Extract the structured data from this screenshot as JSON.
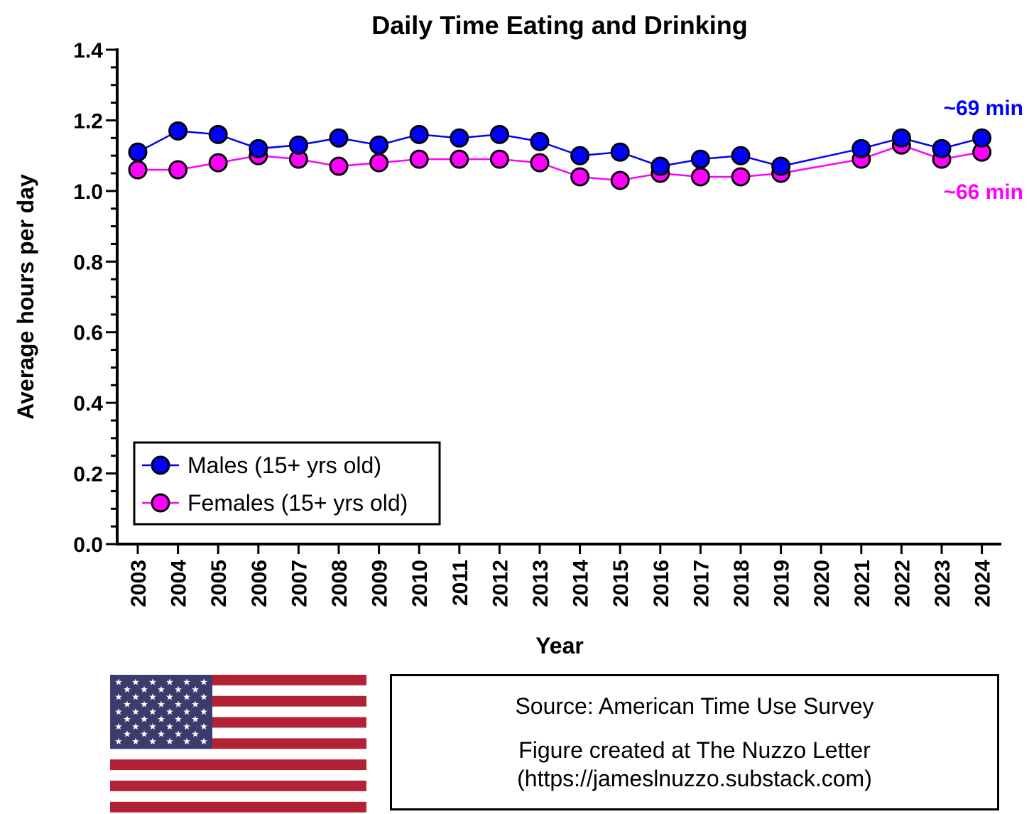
{
  "chart_data": {
    "type": "line",
    "title": "Daily Time Eating and Drinking",
    "xlabel": "Year",
    "ylabel": "Average hours per day",
    "ylim": [
      0,
      1.4
    ],
    "yticks": [
      "0.0",
      "0.2",
      "0.4",
      "0.6",
      "0.8",
      "1.0",
      "1.2",
      "1.4"
    ],
    "categories": [
      "2003",
      "2004",
      "2005",
      "2006",
      "2007",
      "2008",
      "2009",
      "2010",
      "2011",
      "2012",
      "2013",
      "2014",
      "2015",
      "2016",
      "2017",
      "2018",
      "2019",
      "2020",
      "2021",
      "2022",
      "2023",
      "2024"
    ],
    "series": [
      {
        "name": "Males (15+ yrs old)",
        "color": "#0000ff",
        "values": [
          1.11,
          1.17,
          1.16,
          1.12,
          1.13,
          1.15,
          1.13,
          1.16,
          1.15,
          1.16,
          1.14,
          1.1,
          1.11,
          1.07,
          1.09,
          1.1,
          1.07,
          null,
          1.12,
          1.15,
          1.12,
          1.15
        ],
        "end_label": "~69 min"
      },
      {
        "name": "Females (15+ yrs old)",
        "color": "#ff00ff",
        "values": [
          1.06,
          1.06,
          1.08,
          1.1,
          1.09,
          1.07,
          1.08,
          1.09,
          1.09,
          1.09,
          1.08,
          1.04,
          1.03,
          1.05,
          1.04,
          1.04,
          1.05,
          null,
          1.09,
          1.13,
          1.09,
          1.11
        ],
        "end_label": "~66 min"
      }
    ],
    "legend_position": "bottom-left",
    "grid": false
  },
  "source": {
    "line1": "Source: American Time Use Survey",
    "line2": "Figure created at The Nuzzo Letter",
    "line3": "(https://jameslnuzzo.substack.com)"
  },
  "flag": {
    "icon": "us-flag-icon",
    "stripe_red": "#b22234",
    "canton_blue": "#3c3b6e"
  }
}
